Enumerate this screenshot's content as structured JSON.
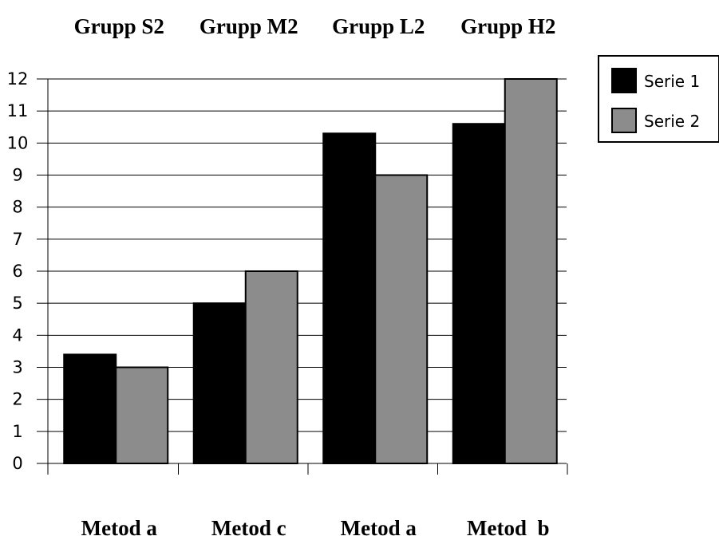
{
  "chart_data": {
    "type": "bar",
    "title": "",
    "xlabel": "",
    "ylabel": "",
    "group_labels": [
      "Grupp S2",
      "Grupp M2",
      "Grupp L2",
      "Grupp H2"
    ],
    "categories": [
      "Metod a",
      "Metod c",
      "Metod a",
      "Metod  b"
    ],
    "series": [
      {
        "name": "Serie 1",
        "values": [
          3.4,
          5,
          10.3,
          10.6
        ],
        "color": "#000000"
      },
      {
        "name": "Serie 2",
        "values": [
          3,
          6,
          9,
          12
        ],
        "color": "#8c8c8c"
      }
    ],
    "ylim": [
      0,
      12
    ],
    "yticks": [
      "0",
      "1",
      "2",
      "3",
      "4",
      "5",
      "6",
      "7",
      "8",
      "9",
      "10",
      "11",
      "12"
    ],
    "grid": true,
    "legend_position": "top-right"
  }
}
